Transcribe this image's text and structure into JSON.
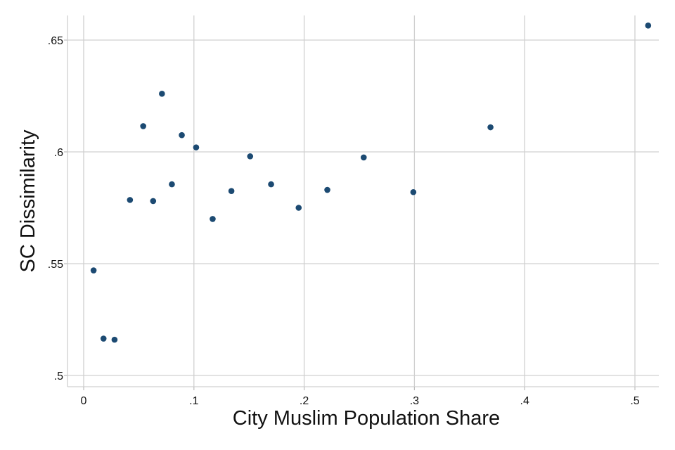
{
  "chart_data": {
    "type": "scatter",
    "xlabel": "City Muslim Population Share",
    "ylabel": "SC Dissimilarity",
    "xlim": [
      0,
      0.52
    ],
    "ylim": [
      0.5,
      0.66
    ],
    "x_ticks": [
      0,
      0.1,
      0.2,
      0.3,
      0.4,
      0.5
    ],
    "x_tick_labels": [
      "0",
      ".1",
      ".2",
      ".3",
      ".4",
      ".5"
    ],
    "y_ticks": [
      0.5,
      0.55,
      0.6,
      0.65
    ],
    "y_tick_labels": [
      ".5",
      ".55",
      ".6",
      ".65"
    ],
    "grid": true,
    "marker_color": "#1c4a72",
    "points": [
      {
        "x": 0.009,
        "y": 0.547
      },
      {
        "x": 0.018,
        "y": 0.5165
      },
      {
        "x": 0.028,
        "y": 0.516
      },
      {
        "x": 0.042,
        "y": 0.5785
      },
      {
        "x": 0.054,
        "y": 0.6115
      },
      {
        "x": 0.063,
        "y": 0.578
      },
      {
        "x": 0.071,
        "y": 0.626
      },
      {
        "x": 0.08,
        "y": 0.5855
      },
      {
        "x": 0.089,
        "y": 0.6075
      },
      {
        "x": 0.102,
        "y": 0.602
      },
      {
        "x": 0.117,
        "y": 0.57
      },
      {
        "x": 0.134,
        "y": 0.5825
      },
      {
        "x": 0.151,
        "y": 0.598
      },
      {
        "x": 0.17,
        "y": 0.5855
      },
      {
        "x": 0.195,
        "y": 0.575
      },
      {
        "x": 0.221,
        "y": 0.583
      },
      {
        "x": 0.254,
        "y": 0.5975
      },
      {
        "x": 0.299,
        "y": 0.582
      },
      {
        "x": 0.369,
        "y": 0.611
      },
      {
        "x": 0.512,
        "y": 0.6565
      }
    ]
  }
}
